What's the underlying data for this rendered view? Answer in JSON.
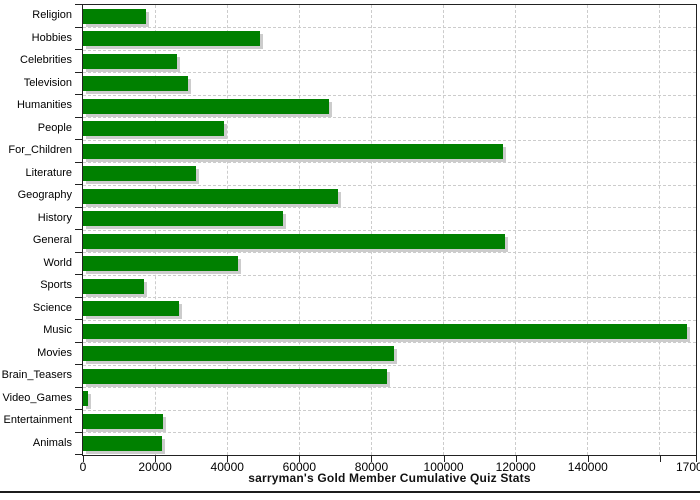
{
  "chart_data": {
    "type": "bar",
    "orientation": "horizontal",
    "title": "sarryman's Gold Member Cumulative Quiz Stats",
    "categories": [
      "Religion",
      "Hobbies",
      "Celebrities",
      "Television",
      "Humanities",
      "People",
      "For_Children",
      "Literature",
      "Geography",
      "History",
      "General",
      "World",
      "Sports",
      "Science",
      "Music",
      "Movies",
      "Brain_Teasers",
      "Video_Games",
      "Entertainment",
      "Animals"
    ],
    "values": [
      17500,
      49000,
      26100,
      29000,
      68200,
      39000,
      116600,
      31200,
      70700,
      55400,
      117100,
      42900,
      16800,
      26700,
      167500,
      86200,
      84300,
      1500,
      22100,
      21900
    ],
    "xlim": [
      0,
      170000
    ],
    "xticks": [
      {
        "value": 0,
        "label": "0"
      },
      {
        "value": 20000,
        "label": "20000"
      },
      {
        "value": 40000,
        "label": "40000"
      },
      {
        "value": 60000,
        "label": "60000"
      },
      {
        "value": 80000,
        "label": "80000"
      },
      {
        "value": 100000,
        "label": "100000"
      },
      {
        "value": 120000,
        "label": "120000"
      },
      {
        "value": 140000,
        "label": "140000"
      },
      {
        "value": 160000,
        "label": ""
      },
      {
        "value": 170000,
        "label": "170000"
      }
    ],
    "bar_color": "#008000",
    "shadow_color": "#cccccc",
    "grid": "dashed",
    "grid_color": "#cccccc",
    "axis_color": "#222222",
    "legend": "none"
  }
}
